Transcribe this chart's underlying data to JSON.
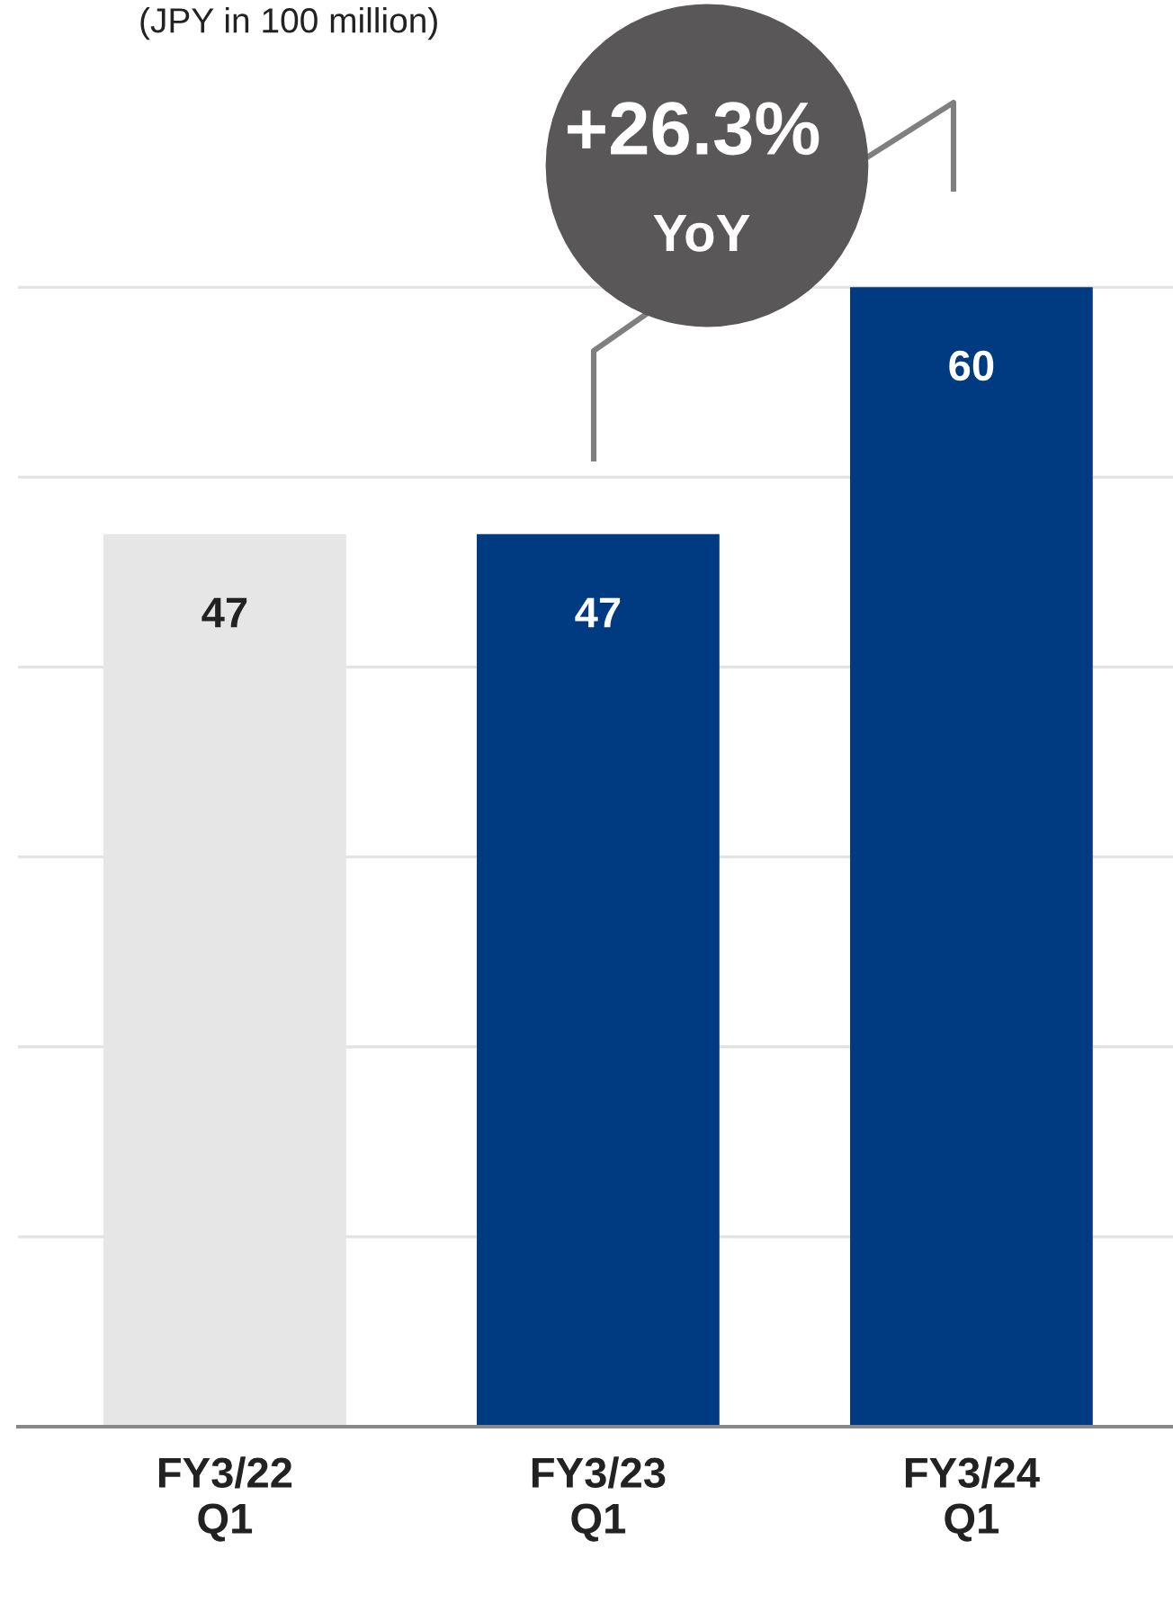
{
  "chart_data": {
    "type": "bar",
    "subtitle": "(JPY in 100 million)",
    "categories": [
      "FY3/22\nQ1",
      "FY3/23\nQ1",
      "FY3/24\nQ1"
    ],
    "values": [
      47,
      47,
      60
    ],
    "colors": [
      "#e6e6e6",
      "#003a80",
      "#003a80"
    ],
    "yticks": [
      {
        "value": 10,
        "label": null
      },
      {
        "value": 20,
        "label": null
      },
      {
        "value": 30,
        "label": null
      },
      {
        "value": 40,
        "label": null
      },
      {
        "value": 50,
        "label": null
      },
      {
        "value": 60,
        "label": null
      }
    ],
    "tick_labels": "x",
    "grid": "y",
    "data_labels": true,
    "annotations": [
      "+26.3%\nYoY"
    ]
  }
}
